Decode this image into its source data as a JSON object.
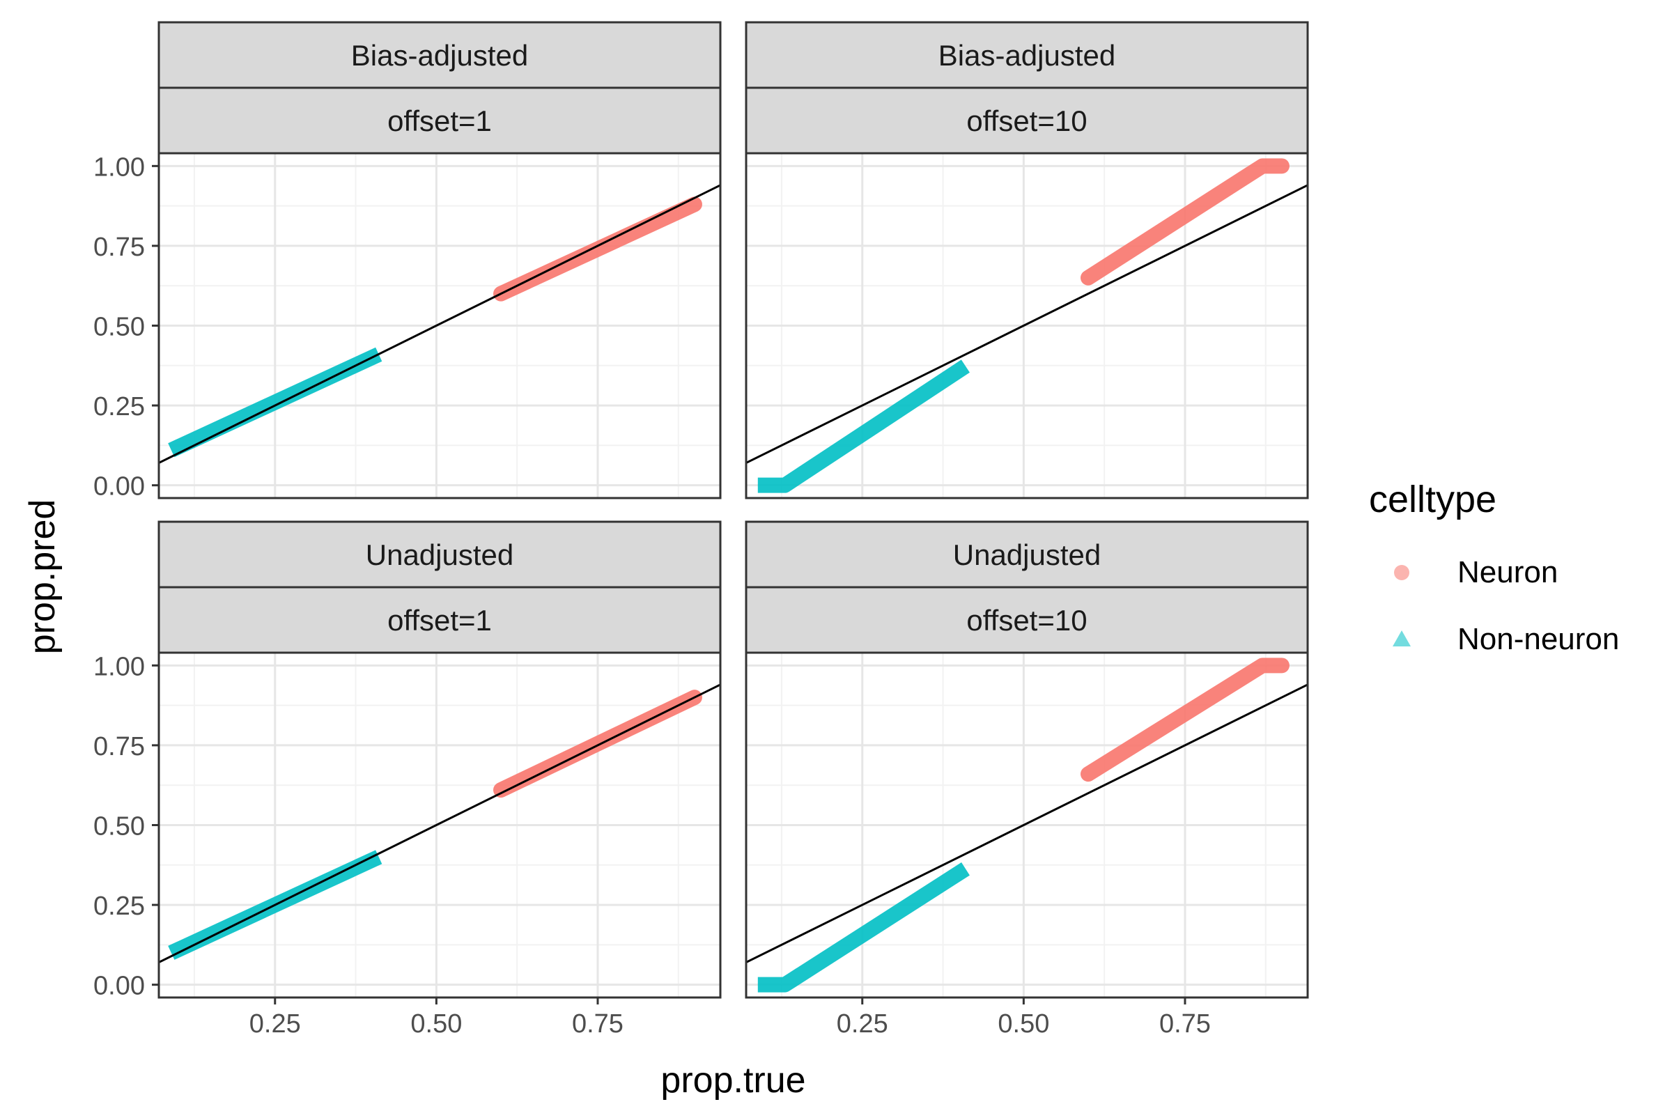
{
  "chart_data": {
    "type": "scatter",
    "xlabel": "prop.true",
    "ylabel": "prop.pred",
    "xlim": [
      0.07,
      0.94
    ],
    "ylim": [
      -0.04,
      1.04
    ],
    "x_ticks": [
      0.25,
      0.5,
      0.75
    ],
    "x_tick_labels": [
      "0.25",
      "0.50",
      "0.75"
    ],
    "y_ticks": [
      0.0,
      0.25,
      0.5,
      0.75,
      1.0
    ],
    "y_tick_labels": [
      "0.00",
      "0.25",
      "0.50",
      "0.75",
      "1.00"
    ],
    "grid": true,
    "reference_line": {
      "slope": 1,
      "intercept": 0
    },
    "legend": {
      "title": "celltype",
      "position": "right",
      "entries": [
        {
          "label": "Neuron",
          "shape": "circle",
          "color": "#F8766D"
        },
        {
          "label": "Non-neuron",
          "shape": "triangle",
          "color": "#00BFC4"
        }
      ]
    },
    "facet_rows": [
      "Bias-adjusted",
      "Unadjusted"
    ],
    "facet_cols": [
      "offset=1",
      "offset=10"
    ],
    "panels": [
      {
        "row": "Bias-adjusted",
        "col": "offset=1",
        "series": [
          {
            "name": "Neuron",
            "x_range": [
              0.6,
              0.9
            ],
            "y_range": [
              0.6,
              0.88
            ],
            "points": [
              [
                0.6,
                0.6
              ],
              [
                0.9,
                0.88
              ]
            ]
          },
          {
            "name": "Non-neuron",
            "x_range": [
              0.1,
              0.4
            ],
            "y_range": [
              0.12,
              0.4
            ],
            "points": [
              [
                0.1,
                0.12
              ],
              [
                0.4,
                0.4
              ]
            ]
          }
        ]
      },
      {
        "row": "Bias-adjusted",
        "col": "offset=10",
        "series": [
          {
            "name": "Neuron",
            "x_range": [
              0.6,
              0.9
            ],
            "y_range": [
              0.65,
              1.0
            ],
            "points": [
              [
                0.6,
                0.65
              ],
              [
                0.87,
                1.0
              ],
              [
                0.9,
                1.0
              ]
            ]
          },
          {
            "name": "Non-neuron",
            "x_range": [
              0.1,
              0.4
            ],
            "y_range": [
              0.0,
              0.36
            ],
            "points": [
              [
                0.1,
                0.0
              ],
              [
                0.13,
                0.0
              ],
              [
                0.4,
                0.36
              ]
            ]
          }
        ]
      },
      {
        "row": "Unadjusted",
        "col": "offset=1",
        "series": [
          {
            "name": "Neuron",
            "x_range": [
              0.6,
              0.9
            ],
            "y_range": [
              0.61,
              0.9
            ],
            "points": [
              [
                0.6,
                0.61
              ],
              [
                0.9,
                0.9
              ]
            ]
          },
          {
            "name": "Non-neuron",
            "x_range": [
              0.1,
              0.4
            ],
            "y_range": [
              0.11,
              0.39
            ],
            "points": [
              [
                0.1,
                0.11
              ],
              [
                0.4,
                0.39
              ]
            ]
          }
        ]
      },
      {
        "row": "Unadjusted",
        "col": "offset=10",
        "series": [
          {
            "name": "Neuron",
            "x_range": [
              0.6,
              0.9
            ],
            "y_range": [
              0.66,
              1.0
            ],
            "points": [
              [
                0.6,
                0.66
              ],
              [
                0.87,
                1.0
              ],
              [
                0.9,
                1.0
              ]
            ]
          },
          {
            "name": "Non-neuron",
            "x_range": [
              0.1,
              0.4
            ],
            "y_range": [
              0.0,
              0.35
            ],
            "points": [
              [
                0.1,
                0.0
              ],
              [
                0.13,
                0.0
              ],
              [
                0.4,
                0.35
              ]
            ]
          }
        ]
      }
    ]
  }
}
